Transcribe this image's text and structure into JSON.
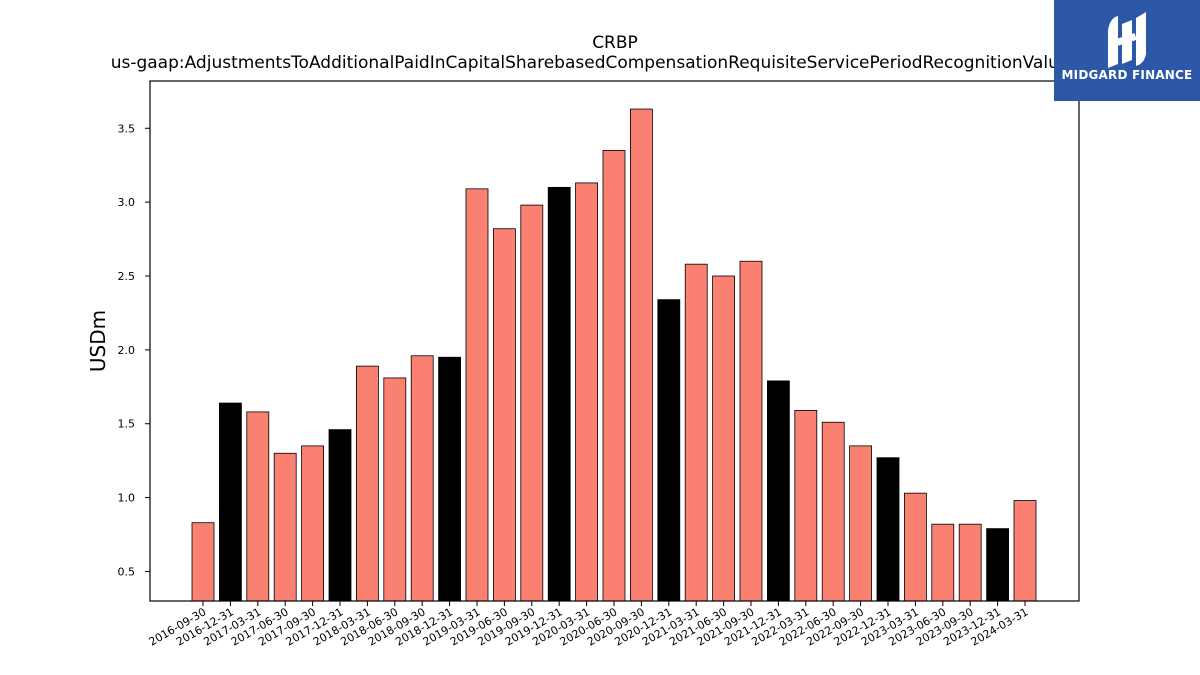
{
  "chart_data": {
    "type": "bar",
    "title": "CRBP",
    "subtitle": "us-gaap:AdjustmentsToAdditionalPaidInCapitalSharebasedCompensationRequisiteServicePeriodRecognitionValue",
    "xlabel": "",
    "ylabel": "USDm",
    "ylim": [
      0.3,
      3.82
    ],
    "yticks": [
      0.5,
      1.0,
      1.5,
      2.0,
      2.5,
      3.0,
      3.5
    ],
    "ytick_labels": [
      "0.5",
      "1.0",
      "1.5",
      "2.0",
      "2.5",
      "3.0",
      "3.5"
    ],
    "grid": false,
    "categories": [
      "2016-09-30",
      "2016-12-31",
      "2017-03-31",
      "2017-06-30",
      "2017-09-30",
      "2017-12-31",
      "2018-03-31",
      "2018-06-30",
      "2018-09-30",
      "2018-12-31",
      "2019-03-31",
      "2019-06-30",
      "2019-09-30",
      "2019-12-31",
      "2020-03-31",
      "2020-06-30",
      "2020-09-30",
      "2020-12-31",
      "2021-03-31",
      "2021-06-30",
      "2021-09-30",
      "2021-12-31",
      "2022-03-31",
      "2022-06-30",
      "2022-09-30",
      "2022-12-31",
      "2023-03-31",
      "2023-06-30",
      "2023-09-30",
      "2023-12-31",
      "2024-03-31"
    ],
    "values": [
      0.83,
      1.64,
      1.58,
      1.3,
      1.35,
      1.46,
      1.89,
      1.81,
      1.96,
      1.95,
      3.09,
      2.82,
      2.98,
      3.1,
      3.13,
      3.35,
      3.63,
      2.34,
      2.58,
      2.5,
      2.6,
      1.79,
      1.59,
      1.51,
      1.35,
      1.27,
      1.03,
      0.82,
      0.82,
      0.79,
      0.98
    ],
    "bar_colors": {
      "quarter": "#fa8072",
      "year_end": "#000000",
      "edge": "#000000"
    }
  },
  "logo": {
    "text": "MIDGARD FINANCE",
    "icon": "midgard-logo-icon",
    "background": "#2d58a8"
  }
}
